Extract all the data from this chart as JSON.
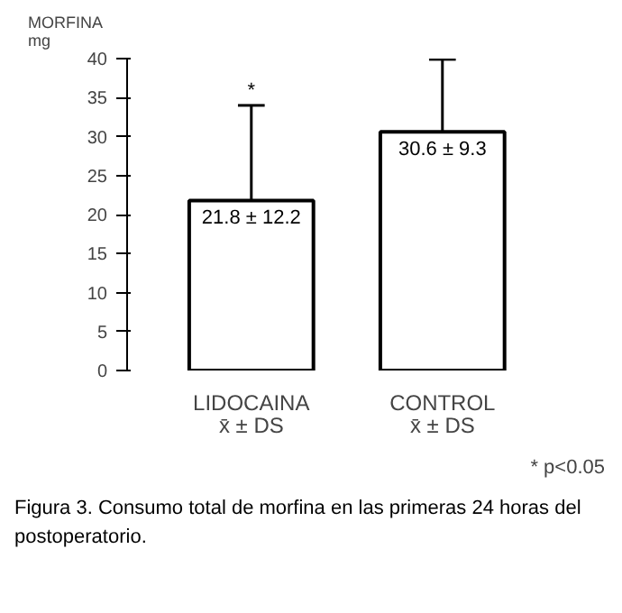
{
  "chart_data": {
    "type": "bar",
    "ylabel": "MORFINA\nmg",
    "categories": [
      "LIDOCAINA\nx̄ ± DS",
      "CONTROL\nx̄ ± DS"
    ],
    "values": [
      21.8,
      30.6
    ],
    "value_labels": [
      "21.8 ± 12.2",
      "30.6 ± 9.3"
    ],
    "errors": [
      [
        21.8,
        34.0
      ],
      [
        30.6,
        39.9
      ]
    ],
    "color": "#ffffff",
    "ylim": [
      0,
      40
    ],
    "yticks": [
      0,
      5,
      10,
      15,
      20,
      25,
      30,
      35,
      40
    ],
    "grid": false,
    "annotations": [
      {
        "text": "*",
        "x": "LIDOCAINA\nx̄ ± DS",
        "y": 34.0
      },
      "* p<0.05",
      "Figura 3. Consumo total de morfina en las primeras 24 horas del postoperatorio."
    ]
  }
}
